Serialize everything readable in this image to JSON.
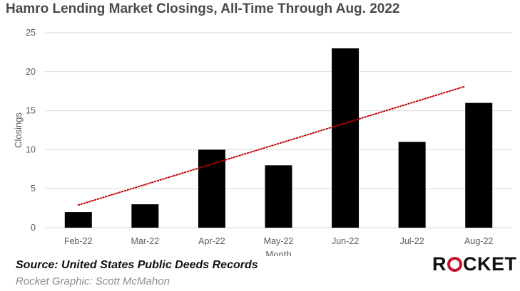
{
  "title": "Hamro Lending Market Closings, All-Time Through Aug. 2022",
  "source": "Source: United States Public Deeds Records",
  "credit": "Rocket Graphic: Scott McMahon",
  "logo": {
    "text": "ROCKET",
    "accent_color": "#c8102e"
  },
  "chart_data": {
    "type": "bar",
    "categories": [
      "Feb-22",
      "Mar-22",
      "Apr-22",
      "May-22",
      "Jun-22",
      "Jul-22",
      "Aug-22"
    ],
    "values": [
      2,
      3,
      10,
      8,
      23,
      11,
      16
    ],
    "xlabel": "Month",
    "ylabel": "Closings",
    "ylim": [
      0,
      25
    ],
    "yticks": [
      0,
      5,
      10,
      15,
      20,
      25
    ],
    "grid": true,
    "bar_color": "#000000",
    "trendline": {
      "type": "linear",
      "style": "dotted",
      "color": "#c00000",
      "start": 2.9,
      "end": 18.1
    }
  }
}
